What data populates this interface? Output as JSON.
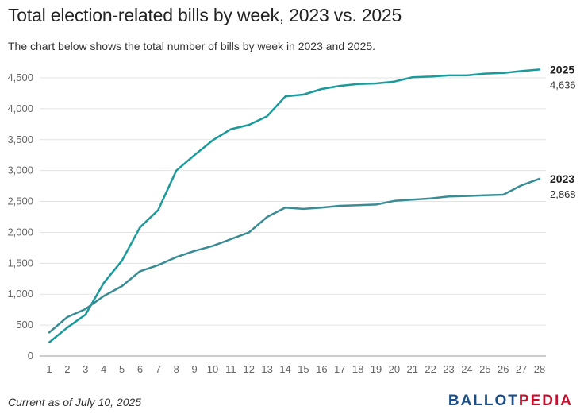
{
  "title": "Total election-related bills by week, 2023 vs. 2025",
  "subtitle": "The chart below shows the total number of bills by week in 2023 and 2025.",
  "footnote": "Current as of July 10, 2025",
  "logo": {
    "part1": "BALLOT",
    "part2": "PEDIA"
  },
  "colors": {
    "s2025": "#1a9a9a",
    "s2023": "#3a8c94",
    "grid": "#e3e3e3",
    "logo_blue": "#1a4e8a",
    "logo_red": "#c8102e"
  },
  "chart_data": {
    "type": "line",
    "x": [
      1,
      2,
      3,
      4,
      5,
      6,
      7,
      8,
      9,
      10,
      11,
      12,
      13,
      14,
      15,
      16,
      17,
      18,
      19,
      20,
      21,
      22,
      23,
      24,
      25,
      26,
      27,
      28
    ],
    "ylim": [
      0,
      4500
    ],
    "yticks": [
      0,
      500,
      1000,
      1500,
      2000,
      2500,
      3000,
      3500,
      4000,
      4500
    ],
    "ytick_labels": [
      "0",
      "500",
      "1,000",
      "1,500",
      "2,000",
      "2,500",
      "3,000",
      "3,500",
      "4,000",
      "4,500"
    ],
    "grid": true,
    "series": [
      {
        "name": "2025",
        "end_label": "4,636",
        "values": [
          220,
          460,
          670,
          1180,
          1540,
          2080,
          2360,
          3000,
          3250,
          3490,
          3670,
          3740,
          3880,
          4200,
          4230,
          4320,
          4370,
          4400,
          4410,
          4440,
          4510,
          4520,
          4540,
          4540,
          4570,
          4580,
          4610,
          4636
        ]
      },
      {
        "name": "2023",
        "end_label": "2,868",
        "values": [
          380,
          630,
          760,
          970,
          1130,
          1370,
          1470,
          1600,
          1700,
          1780,
          1890,
          2000,
          2250,
          2400,
          2380,
          2400,
          2430,
          2440,
          2450,
          2510,
          2530,
          2550,
          2580,
          2590,
          2600,
          2610,
          2760,
          2868
        ]
      }
    ]
  }
}
